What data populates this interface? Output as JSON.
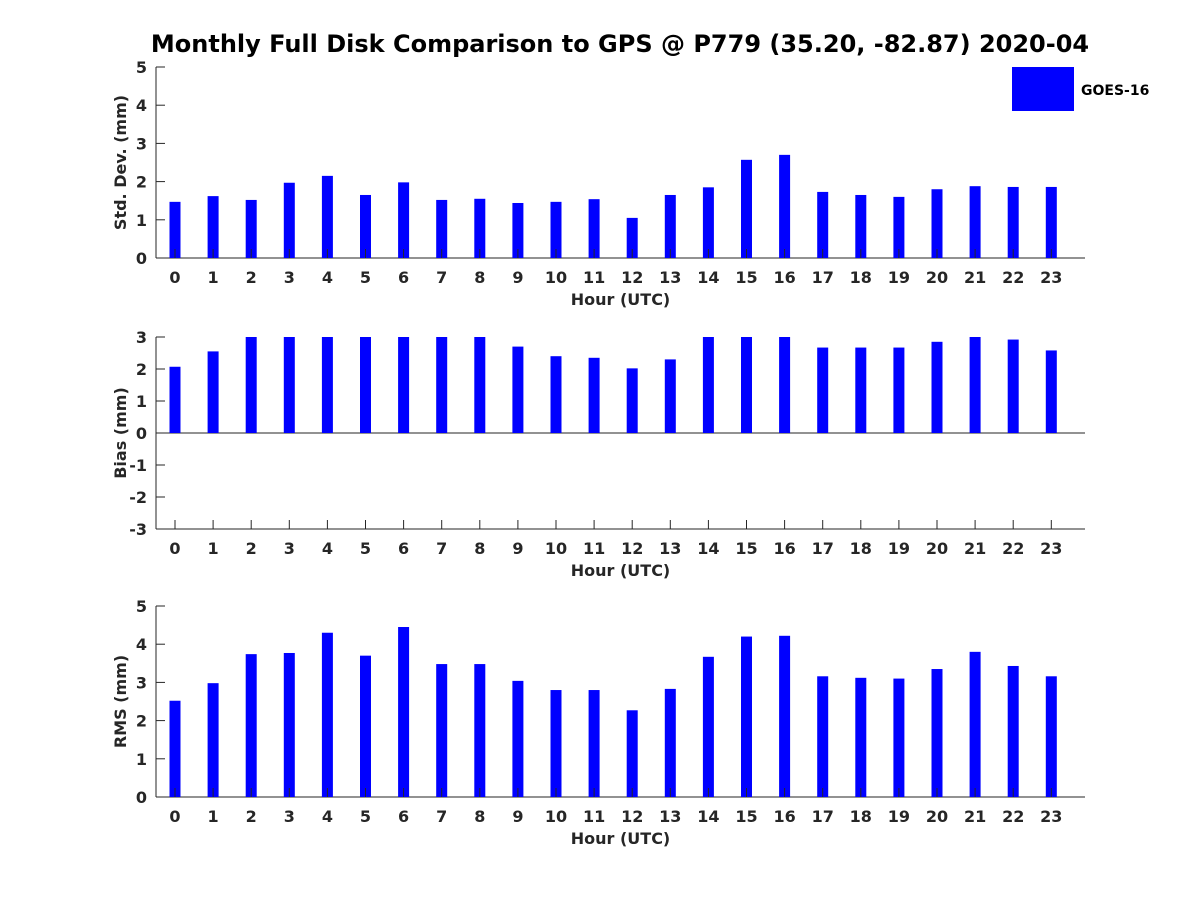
{
  "figure": {
    "title": "Monthly Full Disk Comparison to GPS @ P779 (35.20, -82.87) 2020-04",
    "legend": {
      "label": "GOES-16",
      "color": "#0000ff",
      "placement": "top-right"
    }
  },
  "chart_data": [
    {
      "type": "bar",
      "ylabel": "Std. Dev. (mm)",
      "xlabel": "Hour (UTC)",
      "ylim": [
        0,
        5
      ],
      "yticks": [
        "0",
        "1",
        "2",
        "3",
        "4",
        "5"
      ],
      "categories": [
        "0",
        "1",
        "2",
        "3",
        "4",
        "5",
        "6",
        "7",
        "8",
        "9",
        "10",
        "11",
        "12",
        "13",
        "14",
        "15",
        "16",
        "17",
        "18",
        "19",
        "20",
        "21",
        "22",
        "23"
      ],
      "series": [
        {
          "name": "GOES-16",
          "color": "#0000ff",
          "values": [
            1.47,
            1.62,
            1.52,
            1.97,
            2.15,
            1.65,
            1.98,
            1.52,
            1.55,
            1.44,
            1.47,
            1.54,
            1.05,
            1.65,
            1.85,
            2.57,
            2.7,
            1.73,
            1.65,
            1.6,
            1.8,
            1.88,
            1.86,
            1.86
          ]
        }
      ]
    },
    {
      "type": "bar",
      "ylabel": "Bias (mm)",
      "xlabel": "Hour (UTC)",
      "ylim": [
        -3,
        3
      ],
      "yticks": [
        "-3",
        "-2",
        "-1",
        "0",
        "1",
        "2",
        "3"
      ],
      "categories": [
        "0",
        "1",
        "2",
        "3",
        "4",
        "5",
        "6",
        "7",
        "8",
        "9",
        "10",
        "11",
        "12",
        "13",
        "14",
        "15",
        "16",
        "17",
        "18",
        "19",
        "20",
        "21",
        "22",
        "23"
      ],
      "series": [
        {
          "name": "GOES-16",
          "color": "#0000ff",
          "values": [
            2.07,
            2.55,
            3.0,
            3.0,
            3.0,
            3.0,
            3.0,
            3.0,
            3.0,
            2.7,
            2.4,
            2.35,
            2.02,
            2.3,
            3.0,
            3.0,
            3.0,
            2.67,
            2.67,
            2.67,
            2.85,
            3.0,
            2.92,
            2.58
          ]
        }
      ]
    },
    {
      "type": "bar",
      "ylabel": "RMS (mm)",
      "xlabel": "Hour (UTC)",
      "ylim": [
        0,
        5
      ],
      "yticks": [
        "0",
        "1",
        "2",
        "3",
        "4",
        "5"
      ],
      "categories": [
        "0",
        "1",
        "2",
        "3",
        "4",
        "5",
        "6",
        "7",
        "8",
        "9",
        "10",
        "11",
        "12",
        "13",
        "14",
        "15",
        "16",
        "17",
        "18",
        "19",
        "20",
        "21",
        "22",
        "23"
      ],
      "series": [
        {
          "name": "GOES-16",
          "color": "#0000ff",
          "values": [
            2.52,
            2.98,
            3.74,
            3.77,
            4.3,
            3.7,
            4.45,
            3.48,
            3.48,
            3.04,
            2.8,
            2.8,
            2.27,
            2.83,
            3.67,
            4.2,
            4.22,
            3.16,
            3.12,
            3.1,
            3.35,
            3.8,
            3.43,
            3.16
          ]
        }
      ]
    }
  ]
}
